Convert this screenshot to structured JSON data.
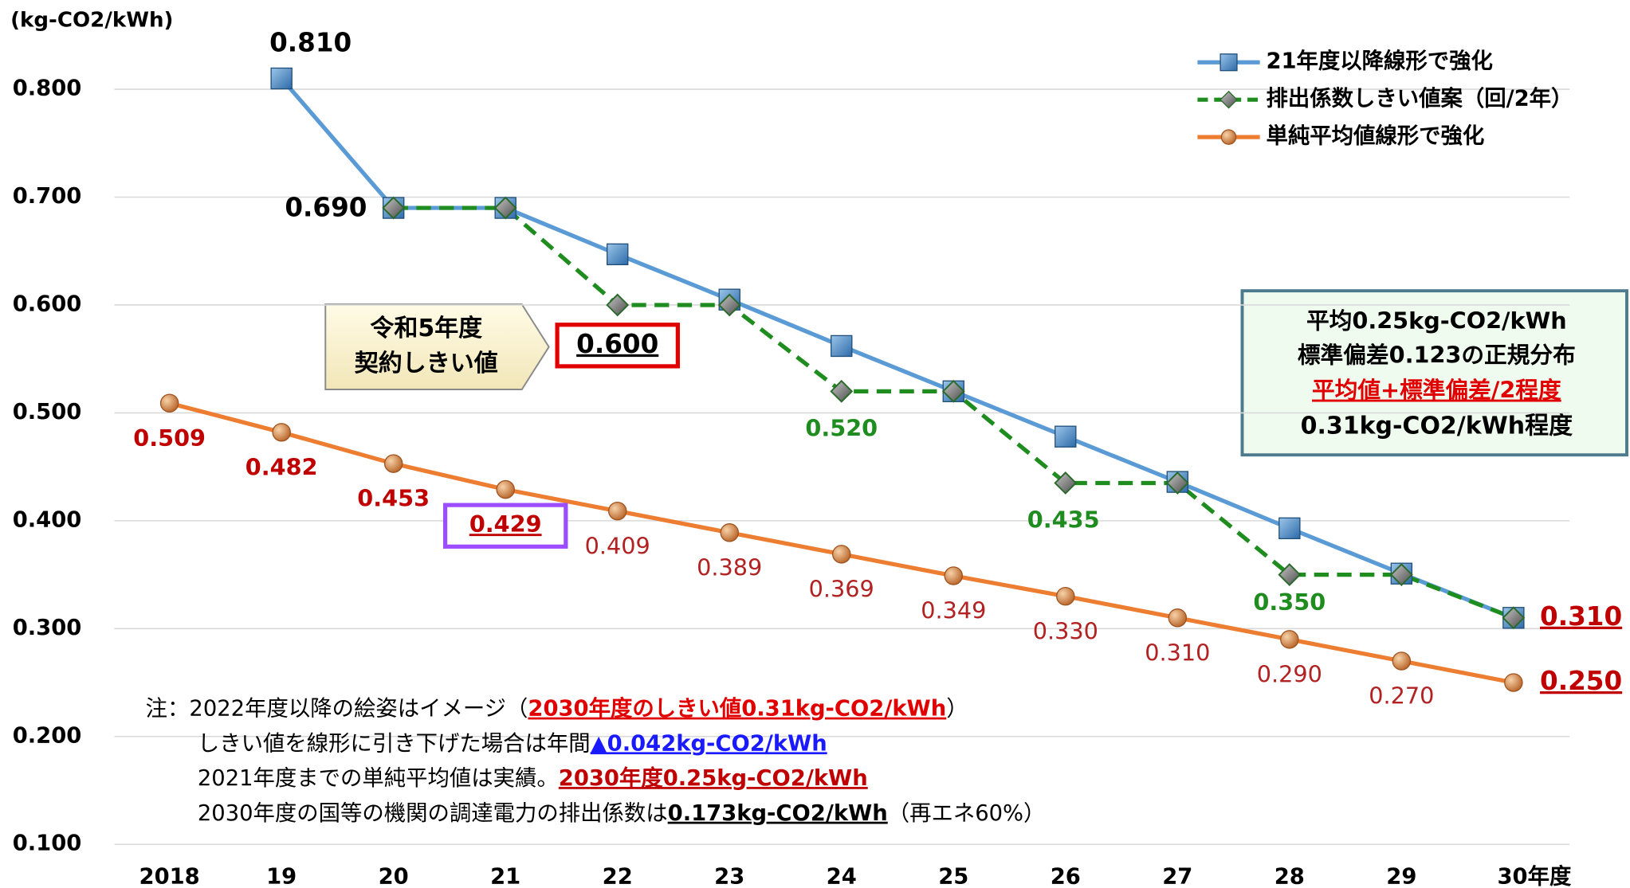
{
  "chart_data": {
    "type": "line",
    "y_label": "(kg-CO2/kWh)",
    "categories": [
      "2018",
      "19",
      "20",
      "21",
      "22",
      "23",
      "24",
      "25",
      "26",
      "27",
      "28",
      "29",
      "30年度"
    ],
    "ylim": [
      0.1,
      0.85
    ],
    "yticks": [
      {
        "value": 0.1,
        "label": "0.100"
      },
      {
        "value": 0.2,
        "label": "0.200"
      },
      {
        "value": 0.3,
        "label": "0.300"
      },
      {
        "value": 0.4,
        "label": "0.400"
      },
      {
        "value": 0.5,
        "label": "0.500"
      },
      {
        "value": 0.6,
        "label": "0.600"
      },
      {
        "value": 0.7,
        "label": "0.700"
      },
      {
        "value": 0.8,
        "label": "0.800"
      }
    ],
    "grid": true,
    "legend": "upper right",
    "series": [
      {
        "name": "21年度以降線形で強化",
        "color": "#5b9bd5",
        "values": [
          null,
          0.81,
          0.69,
          0.69,
          0.647,
          0.605,
          0.562,
          0.52,
          0.478,
          0.436,
          0.393,
          0.351,
          0.31
        ],
        "value_labels": [
          null,
          "0.810",
          null,
          null,
          null,
          null,
          null,
          null,
          null,
          null,
          null,
          null,
          null
        ]
      },
      {
        "name": "排出係数しきい値案（回/2年）",
        "color": "#1e8c1e",
        "values": [
          null,
          null,
          0.69,
          0.69,
          0.6,
          0.6,
          0.52,
          0.52,
          0.435,
          0.435,
          0.35,
          0.35,
          0.31
        ],
        "value_labels": [
          null,
          null,
          "0.690",
          null,
          "0.600",
          null,
          "0.520",
          null,
          "0.435",
          null,
          "0.350",
          null,
          "0.310"
        ]
      },
      {
        "name": "単純平均値線形で強化",
        "color": "#ed7d31",
        "values": [
          0.509,
          0.482,
          0.453,
          0.429,
          0.409,
          0.389,
          0.369,
          0.349,
          0.33,
          0.31,
          0.29,
          0.27,
          0.25
        ],
        "value_labels": [
          "0.509",
          "0.482",
          "0.453",
          "0.429",
          "0.409",
          "0.389",
          "0.369",
          "0.349",
          "0.330",
          "0.310",
          "0.290",
          "0.270",
          "0.250"
        ]
      }
    ],
    "callout": [
      "令和5年度",
      "契約しきい値"
    ],
    "info_box": [
      "平均0.25kg-CO2/kWh",
      "標準偏差0.123の正規分布",
      "平均値+標準偏差/2程度",
      "0.31kg-CO2/kWh程度"
    ],
    "notes": [
      [
        "注：2022年度以降の絵姿はイメージ（",
        "2030年度のしきい値0.31kg-CO2/kWh",
        "）"
      ],
      [
        "しきい値を線形に引き下げた場合は年間",
        "▲0.042kg-CO2/kWh"
      ],
      [
        "2021年度までの単純平均値は実績。",
        "2030年度0.25kg-CO2/kWh"
      ],
      [
        "2030年度の国等の機関の調達電力の排出係数は",
        "0.173kg-CO2/kWh",
        "（再エネ60%）"
      ]
    ]
  }
}
